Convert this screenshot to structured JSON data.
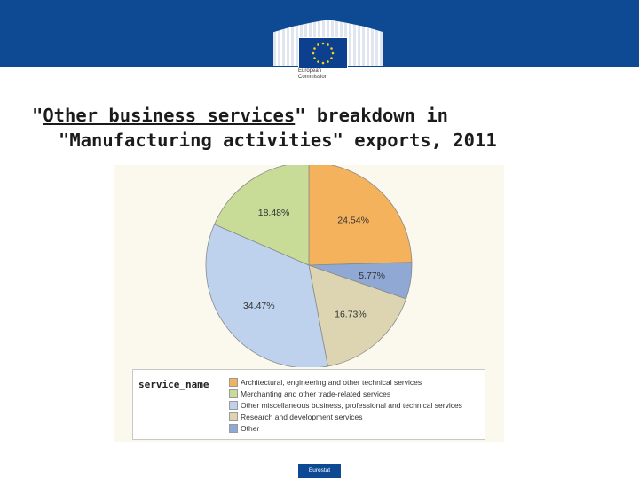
{
  "header": {
    "logo_line1": "European",
    "logo_line2": "Commission",
    "title_part1": "\"",
    "title_underlined": "Other business services",
    "title_part2": "\" breakdown in",
    "title_line2": "\"Manufacturing activities\" exports, 2011"
  },
  "footer": {
    "badge": "Eurostat"
  },
  "chart_data": {
    "type": "pie",
    "title": "\"Other business services\" breakdown in \"Manufacturing activities\" exports, 2011",
    "legend_title": "service_name",
    "legend_position": "bottom",
    "slices": [
      {
        "name": "Architectural, engineering and other technical services",
        "value": 24.54,
        "label": "24.54%",
        "color": "#f5b25c"
      },
      {
        "name": "Other",
        "value": 5.77,
        "label": "5.77%",
        "color": "#8fa8d4"
      },
      {
        "name": "Research and development services",
        "value": 16.73,
        "label": "16.73%",
        "color": "#ddd5b2"
      },
      {
        "name": "Other miscellaneous business, professional and technical services",
        "value": 34.47,
        "label": "34.47%",
        "color": "#bed2ee"
      },
      {
        "name": "Merchanting and other trade-related services",
        "value": 18.48,
        "label": "18.48%",
        "color": "#c8dc98"
      }
    ],
    "legend": [
      {
        "name": "Architectural, engineering and other technical services",
        "color": "#f5b25c"
      },
      {
        "name": "Merchanting and other trade-related services",
        "color": "#c8dc98"
      },
      {
        "name": "Other miscellaneous business, professional and technical services",
        "color": "#bed2ee"
      },
      {
        "name": "Research and development services",
        "color": "#ddd5b2"
      },
      {
        "name": "Other",
        "color": "#8fa8d4"
      }
    ]
  }
}
